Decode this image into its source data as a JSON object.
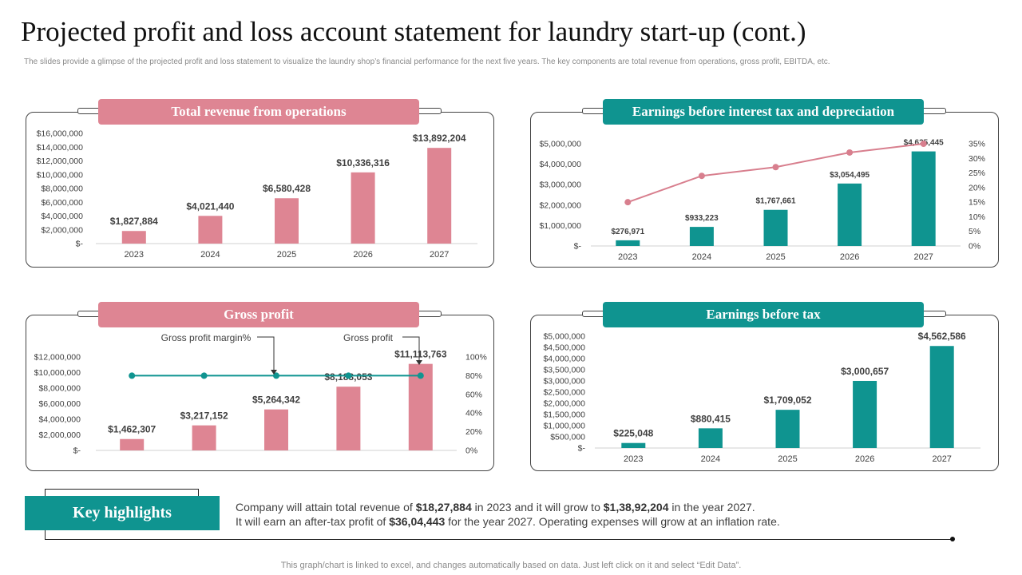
{
  "title": "Projected profit and loss account statement for laundry start-up (cont.)",
  "subtitle": "The slides provide a glimpse of the projected profit and loss statement to visualize the laundry shop’s financial performance for the next five years. The key components are total revenue from operations, gross profit, EBITDA, etc.",
  "colors": {
    "pink": "#de8593",
    "teal": "#0f9490",
    "line_pink": "#d87f8e"
  },
  "chart_data": [
    {
      "id": "revenue",
      "type": "bar",
      "title": "Total revenue from operations",
      "categories": [
        "2023",
        "2024",
        "2025",
        "2026",
        "2027"
      ],
      "values": [
        1827884,
        4021440,
        6580428,
        10336316,
        13892204
      ],
      "value_labels": [
        "$1,827,884",
        "$4,021,440",
        "$6,580,428",
        "$10,336,316",
        "$13,892,204"
      ],
      "ylim": [
        0,
        16000000
      ],
      "yticks": [
        0,
        2000000,
        4000000,
        6000000,
        8000000,
        10000000,
        12000000,
        14000000,
        16000000
      ],
      "ytick_labels": [
        "$-",
        "$2,000,000",
        "$4,000,000",
        "$6,000,000",
        "$8,000,000",
        "$10,000,000",
        "$12,000,000",
        "$14,000,000",
        "$16,000,000"
      ]
    },
    {
      "id": "ebitda",
      "type": "bar",
      "title": "Earnings before interest tax and depreciation",
      "categories": [
        "2023",
        "2024",
        "2025",
        "2026",
        "2027"
      ],
      "values": [
        276971,
        933223,
        1767661,
        3054495,
        4625445
      ],
      "value_labels": [
        "$276,971",
        "$933,223",
        "$1,767,661",
        "$3,054,495",
        "$4,625,445"
      ],
      "ylim": [
        0,
        5000000
      ],
      "yticks": [
        0,
        1000000,
        2000000,
        3000000,
        4000000,
        5000000
      ],
      "ytick_labels": [
        "$-",
        "$1,000,000",
        "$2,000,000",
        "$3,000,000",
        "$4,000,000",
        "$5,000,000"
      ],
      "line": {
        "values": [
          15,
          24,
          27,
          32,
          35
        ],
        "ylim": [
          0,
          35
        ]
      },
      "y2ticks": [
        0,
        5,
        10,
        15,
        20,
        25,
        30,
        35
      ],
      "y2tick_labels": [
        "0%",
        "5%",
        "10%",
        "15%",
        "20%",
        "25%",
        "30%",
        "35%"
      ]
    },
    {
      "id": "gross",
      "type": "bar",
      "title": "Gross profit",
      "categories": [
        "2023",
        "2024",
        "2025",
        "2026",
        "2027"
      ],
      "values": [
        1462307,
        3217152,
        5264342,
        8188053,
        11113763
      ],
      "value_labels": [
        "$1,462,307",
        "$3,217,152",
        "$5,264,342",
        "$8,188,053",
        "$11,113,763"
      ],
      "ylim": [
        0,
        12000000
      ],
      "yticks": [
        0,
        2000000,
        4000000,
        6000000,
        8000000,
        10000000,
        12000000
      ],
      "ytick_labels": [
        "$-",
        "$2,000,000",
        "$4,000,000",
        "$6,000,000",
        "$8,000,000",
        "$10,000,000",
        "$12,000,000"
      ],
      "line": {
        "values": [
          80,
          80,
          80,
          80,
          80
        ],
        "ylim": [
          0,
          100
        ]
      },
      "y2ticks": [
        0,
        20,
        40,
        60,
        80,
        100
      ],
      "y2tick_labels": [
        "0%",
        "20%",
        "40%",
        "60%",
        "80%",
        "100%"
      ],
      "annotations": [
        "Gross profit margin%",
        "Gross profit"
      ]
    },
    {
      "id": "ebt",
      "type": "bar",
      "title": "Earnings before tax",
      "categories": [
        "2023",
        "2024",
        "2025",
        "2026",
        "2027"
      ],
      "values": [
        225048,
        880415,
        1709052,
        3000657,
        4562586
      ],
      "value_labels": [
        "$225,048",
        "$880,415",
        "$1,709,052",
        "$3,000,657",
        "$4,562,586"
      ],
      "ylim": [
        0,
        5000000
      ],
      "yticks": [
        0,
        500000,
        1000000,
        1500000,
        2000000,
        2500000,
        3000000,
        3500000,
        4000000,
        4500000,
        5000000
      ],
      "ytick_labels": [
        "$-",
        "$500,000",
        "$1,000,000",
        "$1,500,000",
        "$2,000,000",
        "$2,500,000",
        "$3,000,000",
        "$3,500,000",
        "$4,000,000",
        "$4,500,000",
        "$5,000,000"
      ]
    }
  ],
  "key_highlights": {
    "label": "Key highlights",
    "line1": {
      "a": "Company will attain total revenue of ",
      "b": "$18,27,884",
      "c": " in 2023 and it will grow to ",
      "d": "$1,38,92,204",
      "e": " in the year 2027."
    },
    "line2": {
      "a": "It will earn an after-tax profit of ",
      "b": "$36,04,443",
      "c": " for the year 2027. Operating expenses will grow at an inflation rate."
    }
  },
  "footer": "This graph/chart is linked to excel,  and changes automatically based on data. Just left click on it and select “Edit Data”."
}
